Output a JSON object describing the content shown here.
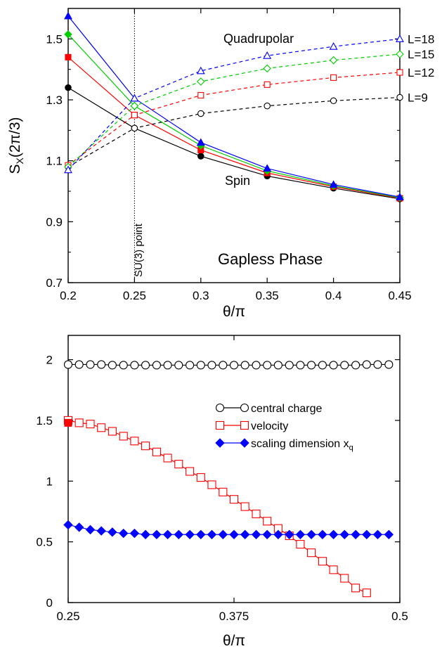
{
  "chart_data": [
    {
      "type": "line",
      "xlabel": "θ/π",
      "ylabel": "S",
      "ylabel_sub": "X",
      "ylabel_suffix": "(2π/3)",
      "xlim": [
        0.2,
        0.45
      ],
      "ylim": [
        0.7,
        1.6
      ],
      "xticks": [
        "0.2",
        "0.25",
        "0.3",
        "0.35",
        "0.4",
        "0.45"
      ],
      "yticks": [
        "0.7",
        "0.9",
        "1.1",
        "1.3",
        "1.5"
      ],
      "annotations": {
        "vline_label": "SU(3) point",
        "phase": "Gapless Phase",
        "quadrupolar": "Quadrupolar",
        "spin": "Spin"
      },
      "x": [
        0.2,
        0.25,
        0.3,
        0.35,
        0.4,
        0.45
      ],
      "series": [
        {
          "name": "L=9",
          "group": "spin",
          "color": "#000000",
          "values": [
            1.34,
            1.207,
            1.115,
            1.05,
            1.01,
            0.975
          ]
        },
        {
          "name": "L=12",
          "group": "spin",
          "color": "#ff0000",
          "values": [
            1.44,
            1.25,
            1.135,
            1.06,
            1.015,
            0.977
          ]
        },
        {
          "name": "L=15",
          "group": "spin",
          "color": "#00cc00",
          "values": [
            1.515,
            1.28,
            1.15,
            1.067,
            1.018,
            0.979
          ]
        },
        {
          "name": "L=18",
          "group": "spin",
          "color": "#0000ff",
          "values": [
            1.575,
            1.305,
            1.16,
            1.075,
            1.022,
            0.981
          ]
        },
        {
          "name": "L=9",
          "group": "quadrupolar",
          "color": "#000000",
          "values": [
            1.08,
            1.207,
            1.255,
            1.28,
            1.297,
            1.308
          ]
        },
        {
          "name": "L=12",
          "group": "quadrupolar",
          "color": "#ff0000",
          "values": [
            1.085,
            1.25,
            1.315,
            1.35,
            1.373,
            1.39
          ]
        },
        {
          "name": "L=15",
          "group": "quadrupolar",
          "color": "#00cc00",
          "values": [
            1.08,
            1.28,
            1.36,
            1.403,
            1.43,
            1.45
          ]
        },
        {
          "name": "L=18",
          "group": "quadrupolar",
          "color": "#0000ff",
          "values": [
            1.07,
            1.305,
            1.395,
            1.445,
            1.475,
            1.5
          ]
        }
      ]
    },
    {
      "type": "line",
      "xlabel": "θ/π",
      "xlim": [
        0.25,
        0.5
      ],
      "ylim": [
        0,
        2.2
      ],
      "xticks": [
        "0.25",
        "0.375",
        "0.5"
      ],
      "yticks": [
        "0",
        "0.5",
        "1",
        "1.5",
        "2"
      ],
      "legend_position": "center-right",
      "x": [
        0.25,
        0.2583,
        0.2667,
        0.275,
        0.2833,
        0.2917,
        0.3,
        0.3083,
        0.3167,
        0.325,
        0.3333,
        0.3417,
        0.35,
        0.3583,
        0.3667,
        0.375,
        0.3833,
        0.3917,
        0.4,
        0.4083,
        0.4167,
        0.425,
        0.4333,
        0.4417,
        0.45,
        0.4583,
        0.4667,
        0.475,
        0.4833,
        0.4917
      ],
      "series": [
        {
          "name": "central charge",
          "color": "#000000",
          "marker": "open-circle",
          "values": [
            1.96,
            1.96,
            1.96,
            1.96,
            1.955,
            1.955,
            1.955,
            1.955,
            1.955,
            1.955,
            1.955,
            1.955,
            1.955,
            1.955,
            1.955,
            1.955,
            1.955,
            1.955,
            1.955,
            1.955,
            1.955,
            1.955,
            1.955,
            1.955,
            1.955,
            1.955,
            1.955,
            1.96,
            1.96,
            1.96
          ]
        },
        {
          "name": "velocity",
          "color": "#ff0000",
          "marker": "open-square",
          "values": [
            1.5,
            1.48,
            1.47,
            1.44,
            1.41,
            1.37,
            1.33,
            1.29,
            1.24,
            1.19,
            1.14,
            1.08,
            1.03,
            0.97,
            0.91,
            0.85,
            0.79,
            0.73,
            0.67,
            0.61,
            0.55,
            0.48,
            0.41,
            0.34,
            0.27,
            0.2,
            0.12,
            0.08,
            null,
            null
          ]
        },
        {
          "name": "scaling dimension x",
          "name_sub": "q",
          "color": "#0000ff",
          "marker": "filled-diamond",
          "values": [
            0.64,
            0.62,
            0.6,
            0.59,
            0.58,
            0.57,
            0.57,
            0.56,
            0.56,
            0.56,
            0.56,
            0.56,
            0.56,
            0.56,
            0.56,
            0.56,
            0.56,
            0.56,
            0.56,
            0.56,
            0.56,
            0.56,
            0.56,
            0.56,
            0.56,
            0.56,
            0.56,
            0.56,
            0.56,
            0.56
          ]
        }
      ],
      "extra_marker": {
        "x": 0.25,
        "y": 1.48,
        "color": "#ff0000",
        "marker": "filled-square"
      }
    }
  ]
}
